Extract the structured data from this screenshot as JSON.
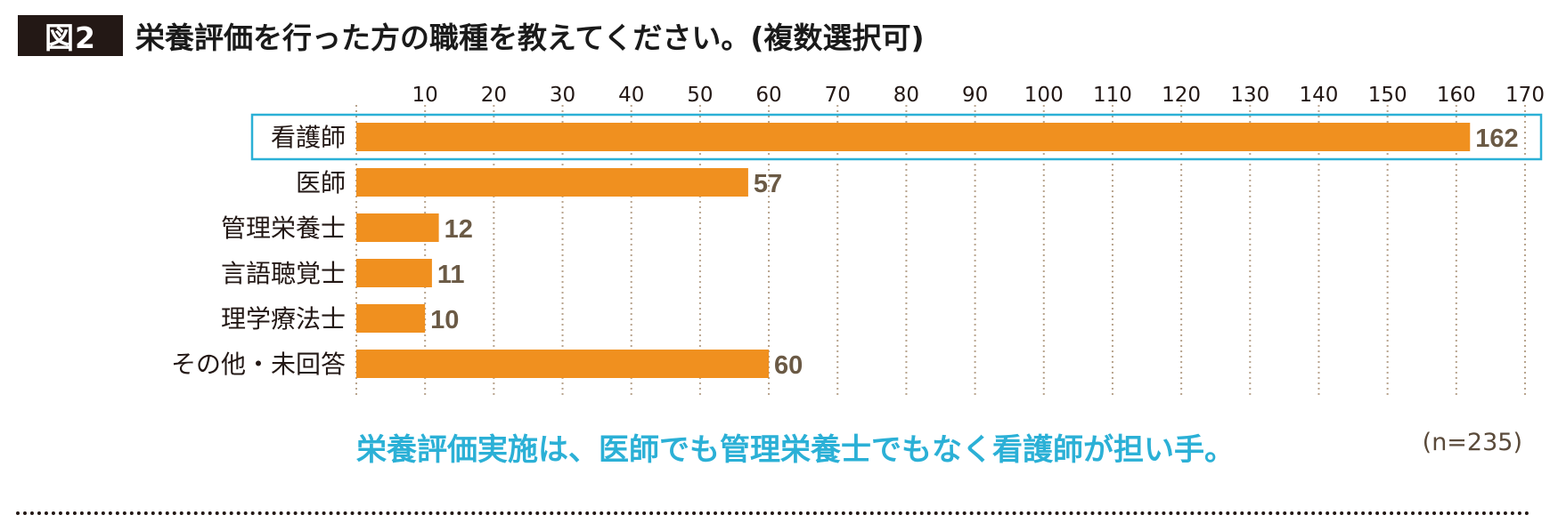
{
  "figure": {
    "badge": "図2",
    "title": "栄養評価を行った方の職種を教えてください。(複数選択可)",
    "caption": "栄養評価実施は、医師でも管理栄養士でもなく看護師が担い手。",
    "sample_size": "(n=235)"
  },
  "colors": {
    "bar": "#F0901F",
    "value_label": "#6B5A45",
    "highlight_box": "#2BB0D6",
    "caption": "#2BB0D6",
    "grid": "#B8A48E"
  },
  "chart_data": {
    "type": "bar",
    "orientation": "horizontal",
    "categories": [
      "看護師",
      "医師",
      "管理栄養士",
      "言語聴覚士",
      "理学療法士",
      "その他・未回答"
    ],
    "values": [
      162,
      57,
      12,
      11,
      10,
      60
    ],
    "value_labels": [
      "162",
      "57",
      "12",
      "11",
      "10",
      "60"
    ],
    "xlim": [
      0,
      170
    ],
    "xticks": [
      10,
      20,
      30,
      40,
      50,
      60,
      70,
      80,
      90,
      100,
      110,
      120,
      130,
      140,
      150,
      160,
      170
    ],
    "xtick_position": "top",
    "grid": "vertical dotted",
    "highlighted_category": "看護師",
    "legend": "none"
  }
}
